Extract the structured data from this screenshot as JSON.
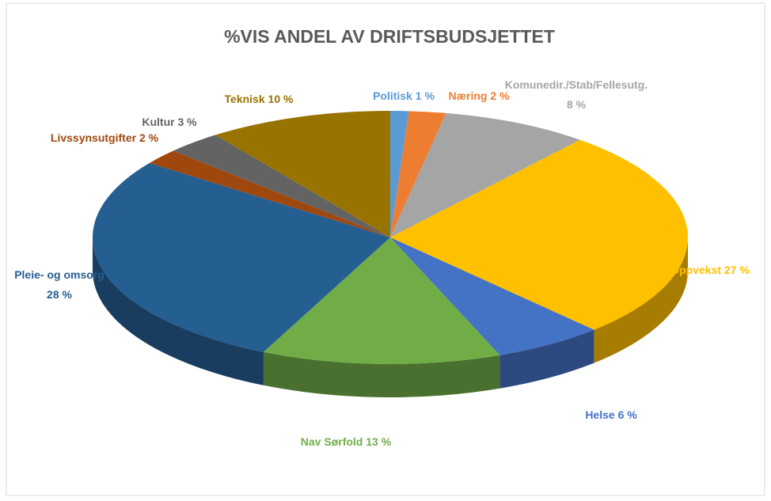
{
  "chart_data": {
    "type": "pie",
    "title": "%VIS ANDEL AV DRIFTSBUDSJETTET",
    "categories": [
      "Politisk",
      "Næring",
      "Komunedir./Stab/Fellesutg.",
      "Oppvekst",
      "Helse",
      "Nav Sørfold",
      "Pleie- og omsorg",
      "Livssynsutgifter",
      "Kultur",
      "Teknisk"
    ],
    "values": [
      1,
      2,
      8,
      27,
      6,
      13,
      28,
      2,
      3,
      10
    ],
    "value_labels": [
      "1 %",
      "2 %",
      "8 %",
      "27 %",
      "6 %",
      "13 %",
      "28 %",
      "2 %",
      "3 %",
      "10 %"
    ],
    "colors": [
      "#5b9bd5",
      "#ed7d31",
      "#a5a5a5",
      "#ffc000",
      "#4472c4",
      "#70ad47",
      "#255e91",
      "#9e480e",
      "#636363",
      "#997300"
    ]
  }
}
